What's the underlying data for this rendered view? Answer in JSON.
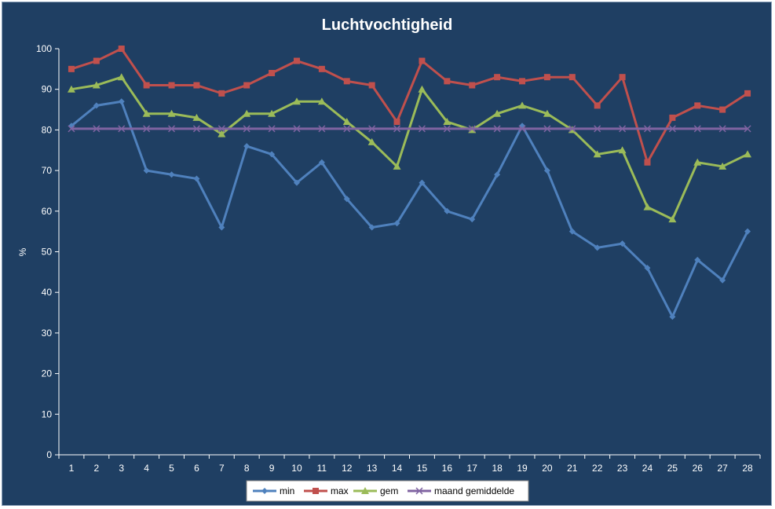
{
  "chart_data": {
    "type": "line",
    "title": "Luchtvochtigheid",
    "xlabel": "",
    "ylabel": "%",
    "ylim": [
      0,
      100
    ],
    "ytick_step": 10,
    "grid": false,
    "legend_position": "bottom",
    "x": [
      1,
      2,
      3,
      4,
      5,
      6,
      7,
      8,
      9,
      10,
      11,
      12,
      13,
      14,
      15,
      16,
      17,
      18,
      19,
      20,
      21,
      22,
      23,
      24,
      25,
      26,
      27,
      28
    ],
    "series": [
      {
        "name": "min",
        "color": "#4f81bd",
        "marker": "diamond",
        "values": [
          81,
          86,
          87,
          70,
          69,
          68,
          56,
          76,
          74,
          67,
          72,
          63,
          56,
          57,
          67,
          60,
          58,
          69,
          81,
          70,
          55,
          51,
          52,
          46,
          34,
          48,
          43,
          55
        ]
      },
      {
        "name": "max",
        "color": "#c0504d",
        "marker": "square",
        "values": [
          95,
          97,
          100,
          91,
          91,
          91,
          89,
          91,
          94,
          97,
          95,
          92,
          91,
          82,
          97,
          92,
          91,
          93,
          92,
          93,
          93,
          86,
          93,
          72,
          83,
          86,
          85,
          89
        ]
      },
      {
        "name": "gem",
        "color": "#9bbb59",
        "marker": "triangle",
        "values": [
          90,
          91,
          93,
          84,
          84,
          83,
          79,
          84,
          84,
          87,
          87,
          82,
          77,
          71,
          90,
          82,
          80,
          84,
          86,
          84,
          80,
          74,
          75,
          61,
          58,
          72,
          71,
          74
        ]
      },
      {
        "name": "maand gemiddelde",
        "color": "#8064a2",
        "marker": "x",
        "values": [
          80.3,
          80.3,
          80.3,
          80.3,
          80.3,
          80.3,
          80.3,
          80.3,
          80.3,
          80.3,
          80.3,
          80.3,
          80.3,
          80.3,
          80.3,
          80.3,
          80.3,
          80.3,
          80.3,
          80.3,
          80.3,
          80.3,
          80.3,
          80.3,
          80.3,
          80.3,
          80.3,
          80.3
        ]
      }
    ]
  }
}
